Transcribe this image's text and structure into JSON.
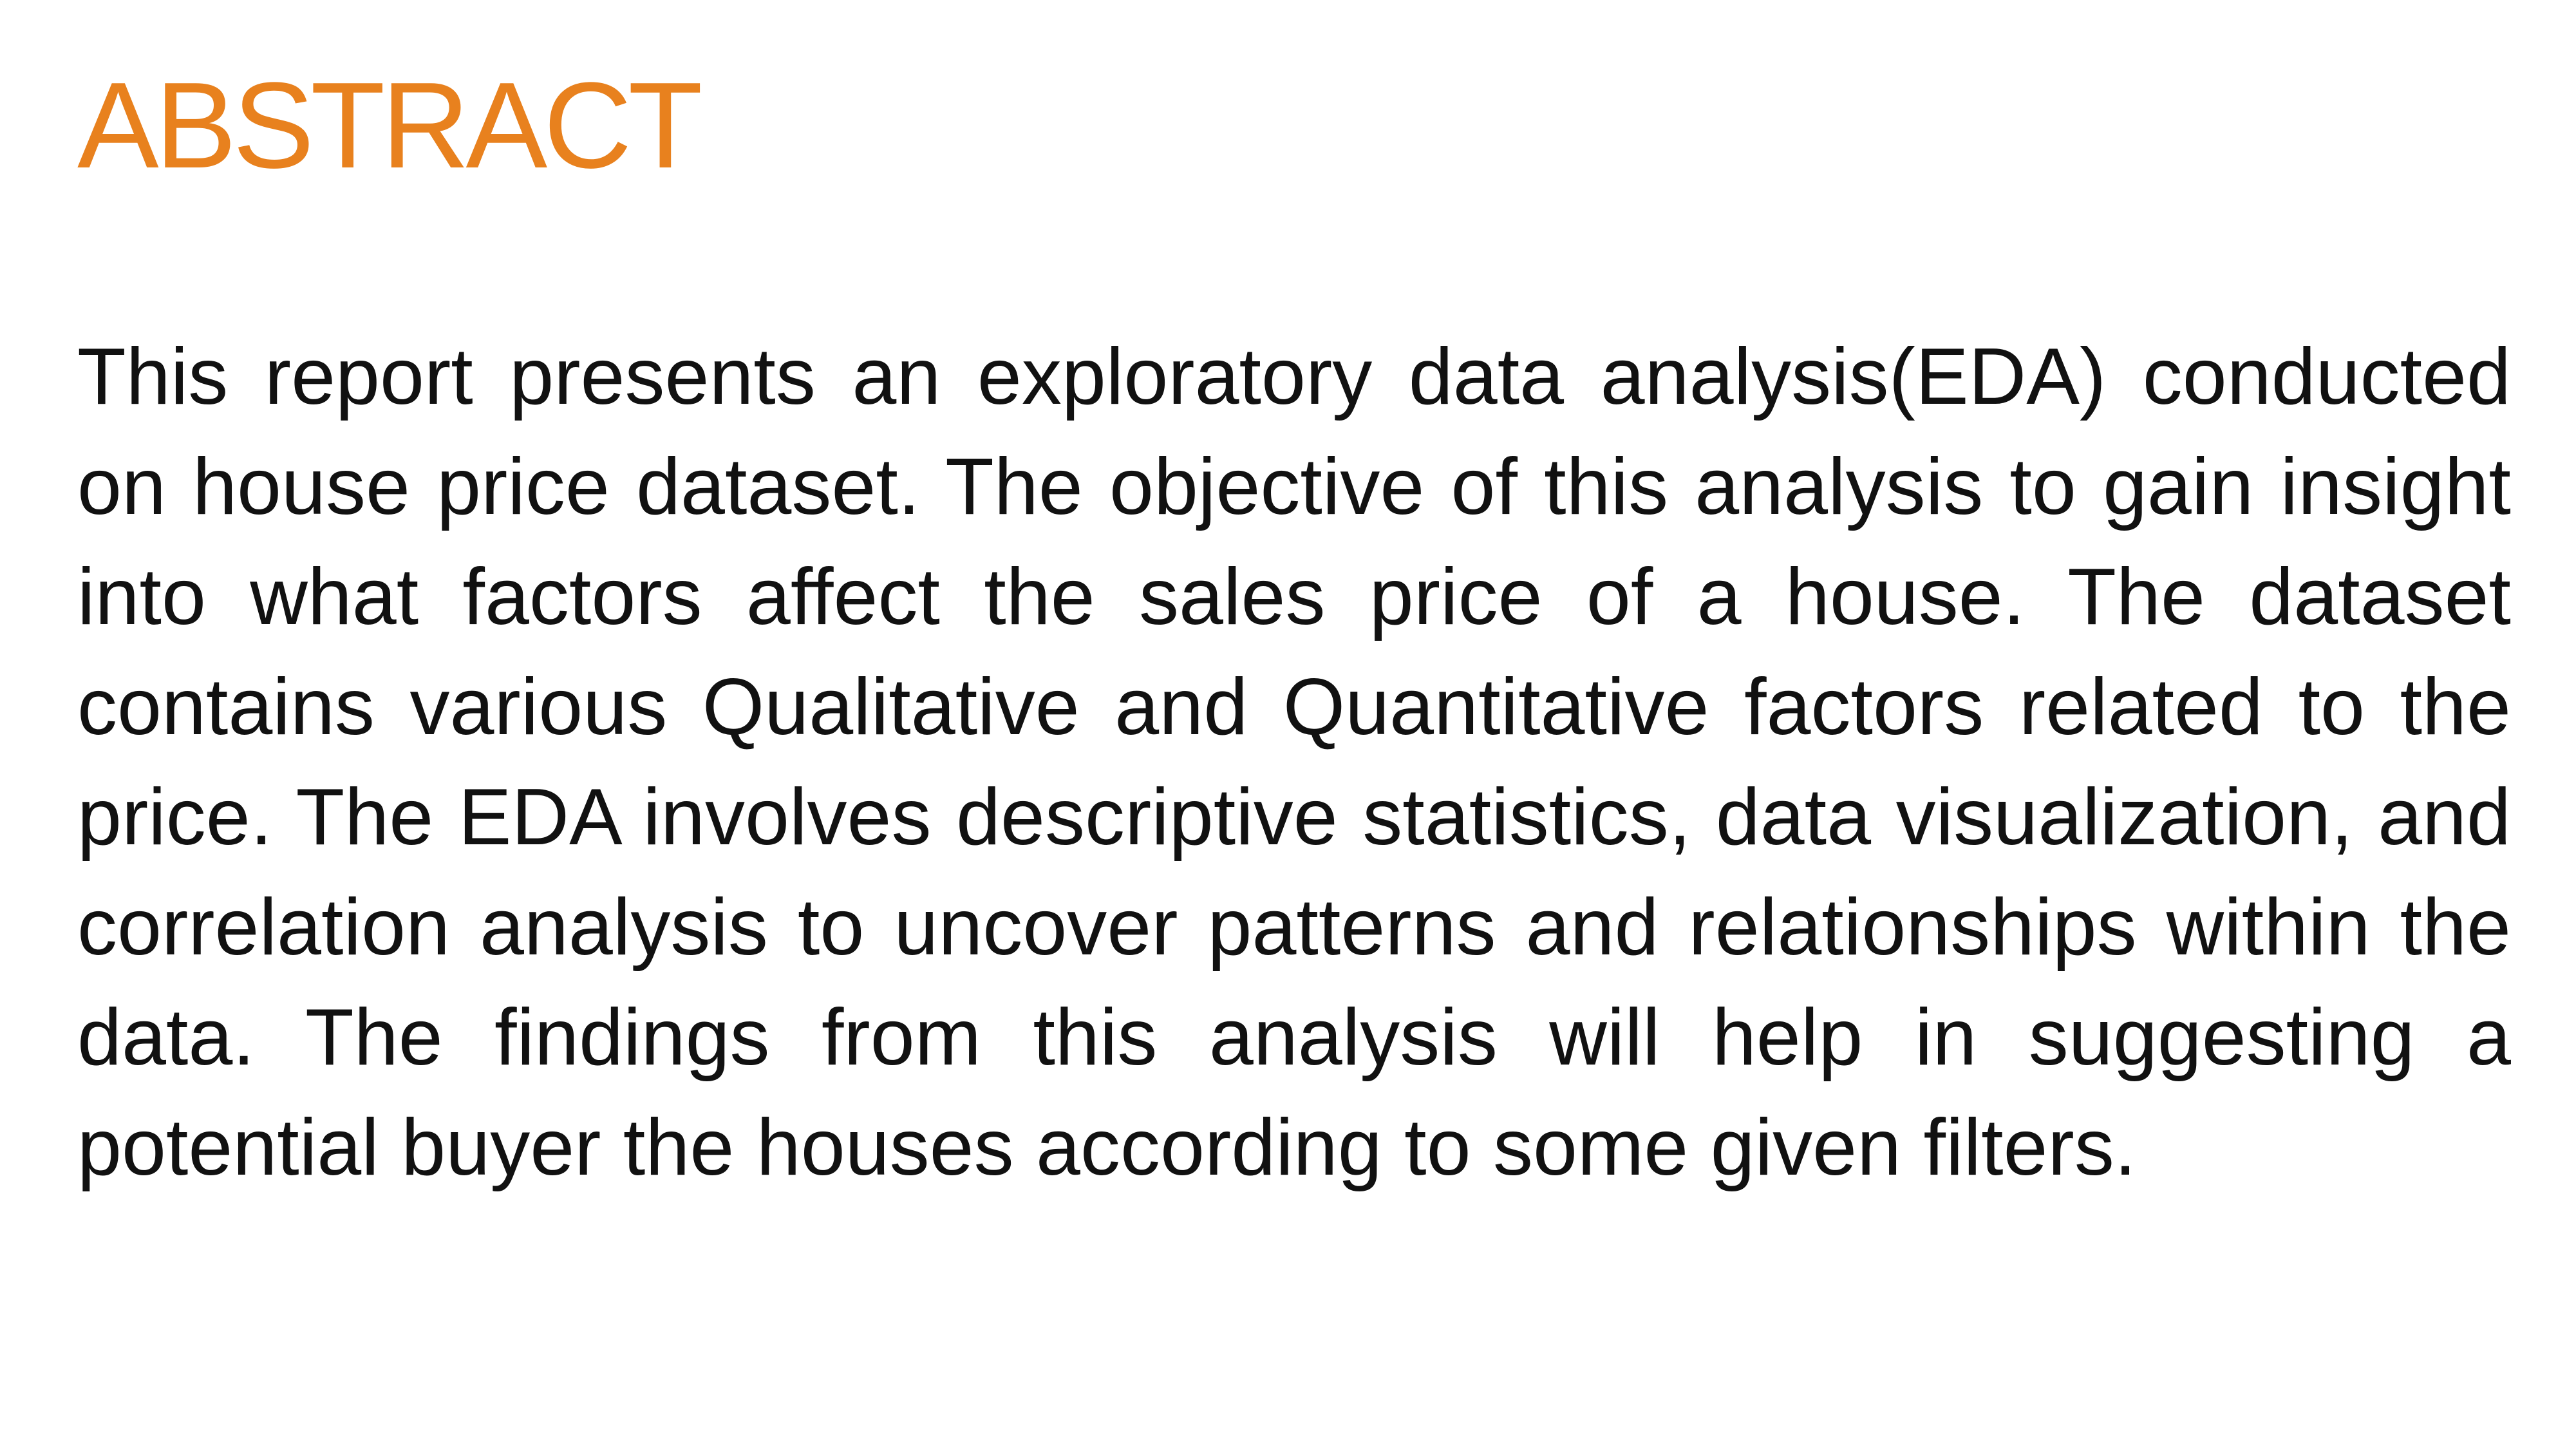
{
  "slide": {
    "title": "ABSTRACT",
    "title_color": "#E8811E",
    "body": "This report presents an exploratory data analysis(EDA) conducted on house price dataset. The objective of this analysis to gain insight into what factors affect the sales price of a house. The dataset contains various Qualitative and Quantitative factors related to the price. The EDA involves descriptive statistics, data visualization, and correlation analysis to uncover patterns and relationships within the data. The findings from this analysis will help in suggesting a potential buyer the houses according to some given filters."
  }
}
